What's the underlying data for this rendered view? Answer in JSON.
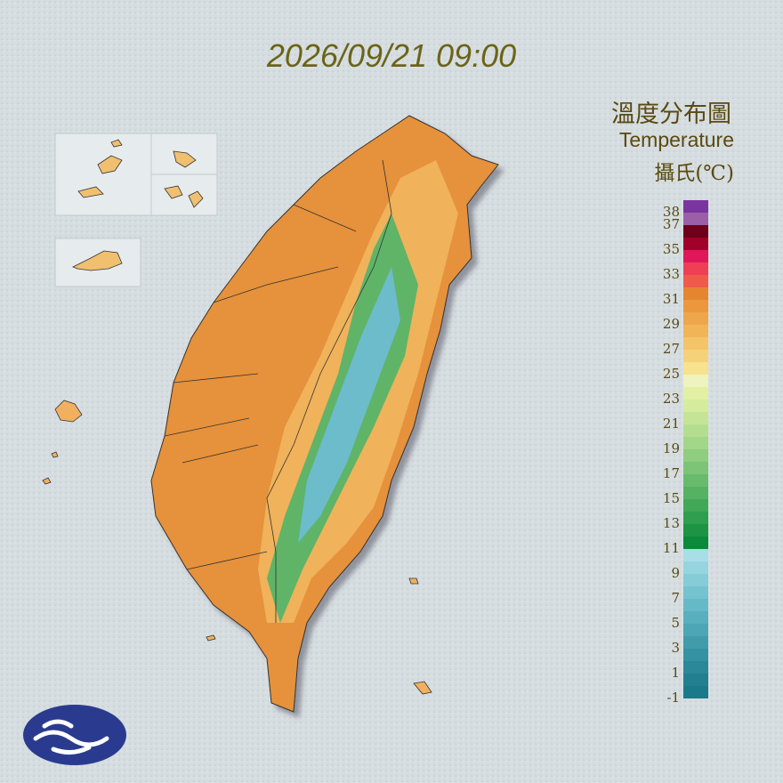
{
  "header": {
    "timestamp": "2026/09/21 09:00"
  },
  "legend": {
    "title": "溫度分布圖",
    "subtitle": "Temperature",
    "unit": "攝氏(℃)",
    "ticks": [
      38,
      37,
      35,
      33,
      31,
      29,
      27,
      25,
      23,
      21,
      19,
      17,
      15,
      13,
      11,
      9,
      7,
      5,
      3,
      1,
      -1
    ],
    "colors": [
      "#1a7a8a",
      "#217f8f",
      "#2a8898",
      "#3592a2",
      "#409cab",
      "#4ca6b4",
      "#58afbd",
      "#66b9c6",
      "#75c3cf",
      "#85ccd7",
      "#96d5df",
      "#a8dee6",
      "#0a8a3a",
      "#1d9444",
      "#2f9e4e",
      "#41a858",
      "#55b262",
      "#68bb6c",
      "#7cc476",
      "#8fcd7f",
      "#a2d688",
      "#b4de8f",
      "#c5e596",
      "#d5ec9c",
      "#e2f0a4",
      "#eef3c0",
      "#f7e28e",
      "#f5d27a",
      "#f3c468",
      "#f1b558",
      "#eea64a",
      "#ea973d",
      "#e68530",
      "#f05a4a",
      "#ef3f55",
      "#e0185a",
      "#a0002a",
      "#6e001a",
      "#9a5fa8",
      "#7a35a0"
    ]
  }
}
